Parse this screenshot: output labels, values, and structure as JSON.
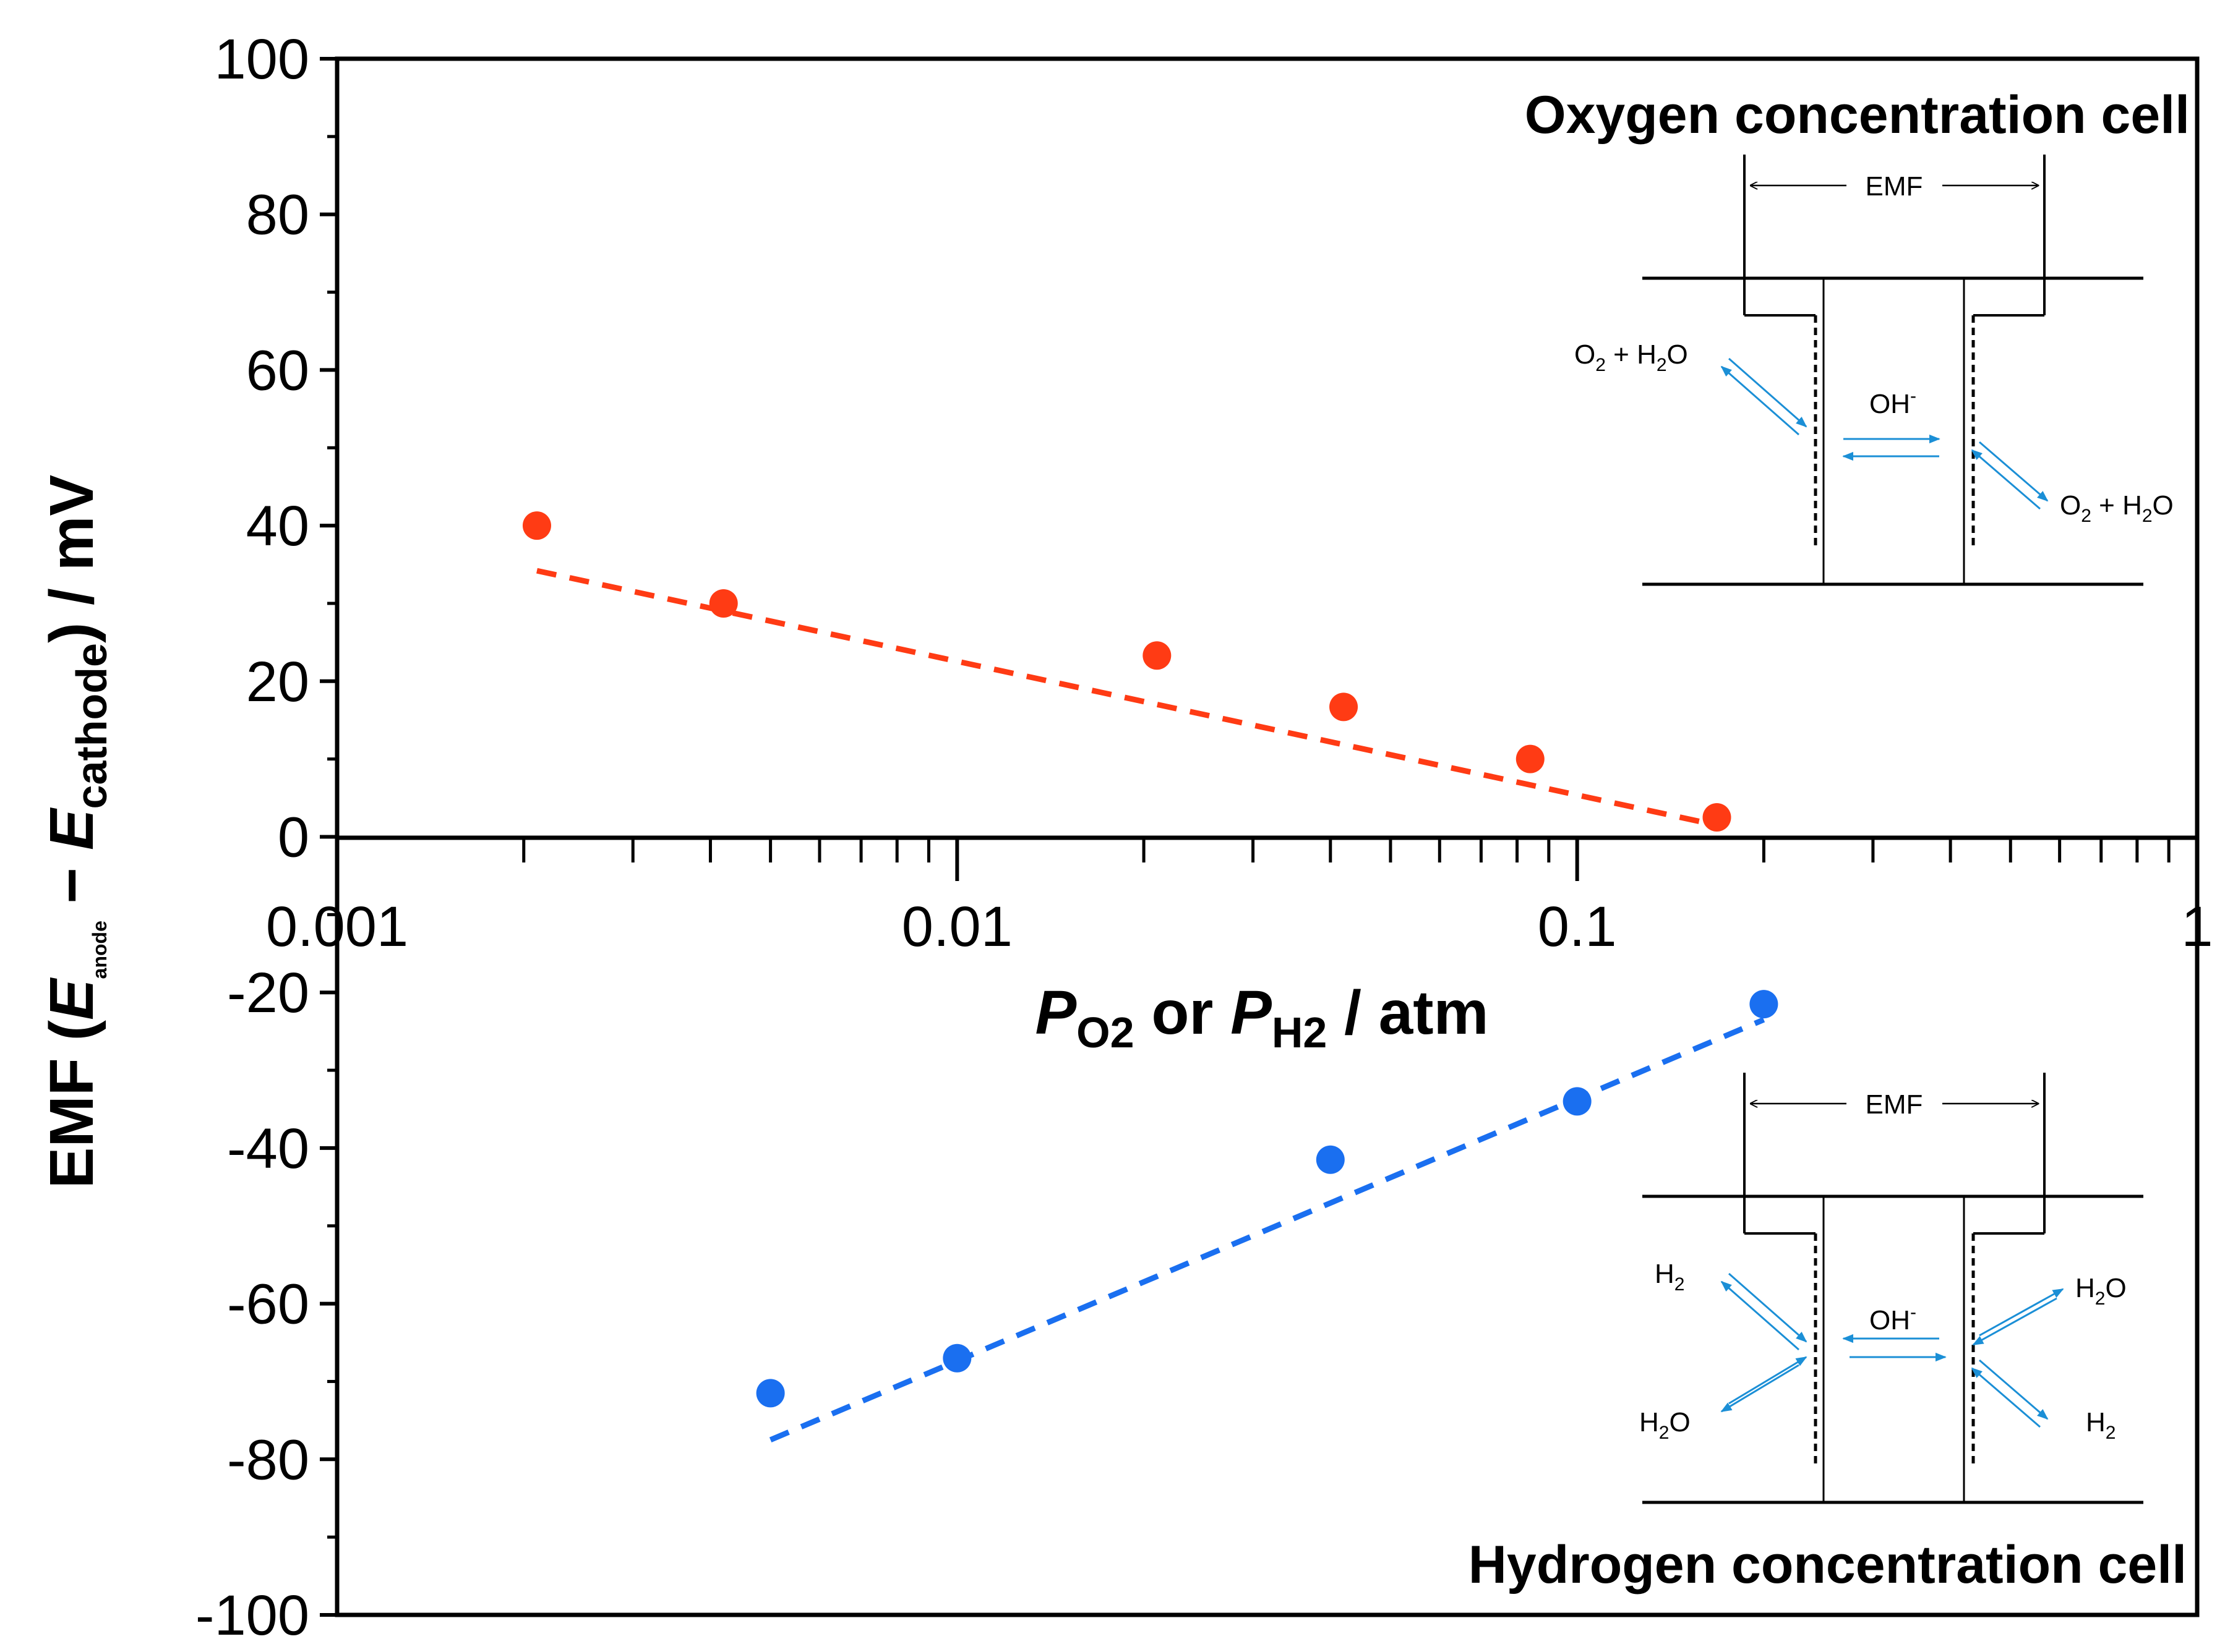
{
  "chart_data": {
    "type": "scatter",
    "x_scale": "log",
    "xlim": [
      0.001,
      1
    ],
    "ylim": [
      -100,
      100
    ],
    "x_ticks": [
      0.001,
      0.01,
      0.1,
      1
    ],
    "x_tick_labels": [
      "0.001",
      "0.01",
      "0.1",
      "1"
    ],
    "y_ticks": [
      100,
      80,
      60,
      40,
      20,
      0,
      -20,
      -40,
      -60,
      -80,
      -100
    ],
    "y_tick_labels": [
      "100",
      "80",
      "60",
      "40",
      "20",
      "0",
      "-20",
      "-40",
      "-60",
      "-80",
      "-100"
    ],
    "ylabel": {
      "prefix": "EMF (",
      "e1": "E",
      "e1_sub": "anode",
      "minus": " − ",
      "e2": "E",
      "e2_sub": "cathode",
      "suffix": ") / mV"
    },
    "xlabel": {
      "p1": "P",
      "p1_sub": "O2",
      "mid": " or ",
      "p2": "P",
      "p2_sub": "H2",
      "suffix": " / atm"
    },
    "series": [
      {
        "name": "Oxygen concentration cell",
        "color": "#ff3b14",
        "x": [
          0.0021,
          0.0042,
          0.021,
          0.042,
          0.084,
          0.168
        ],
        "y": [
          40,
          30,
          23.3,
          16.7,
          10,
          2.5
        ],
        "fit": {
          "x": [
            0.0021,
            0.168
          ],
          "y": [
            34.2,
            1.5
          ]
        }
      },
      {
        "name": "Hydrogen concentration cell",
        "color": "#1a6ff0",
        "x": [
          0.005,
          0.01,
          0.04,
          0.1,
          0.2
        ],
        "y": [
          -71.5,
          -67,
          -41.5,
          -34,
          -21.5
        ],
        "fit": {
          "x": [
            0.005,
            0.2
          ],
          "y": [
            -77.5,
            -23.5
          ]
        }
      }
    ],
    "insets": {
      "oxygen": {
        "title": "Oxygen concentration cell",
        "emf": "EMF",
        "ion": "OH",
        "ion_charge": "-",
        "left_species": {
          "a": "O",
          "a_sub": "2",
          "b": " + H",
          "b_sub": "2",
          "c": "O"
        },
        "right_species": {
          "a": "O",
          "a_sub": "2",
          "b": " + H",
          "b_sub": "2",
          "c": "O"
        }
      },
      "hydrogen": {
        "title": "Hydrogen concentration cell",
        "emf": "EMF",
        "ion": "OH",
        "ion_charge": "-",
        "left_top": {
          "a": "H",
          "a_sub": "2"
        },
        "left_bottom": {
          "a": "H",
          "a_sub": "2",
          "b": "O"
        },
        "right_top": {
          "a": "H",
          "a_sub": "2",
          "b": "O"
        },
        "right_bottom": {
          "a": "H",
          "a_sub": "2"
        }
      }
    },
    "colors": {
      "axis": "#000000",
      "arrow": "#1b8fd6"
    }
  }
}
